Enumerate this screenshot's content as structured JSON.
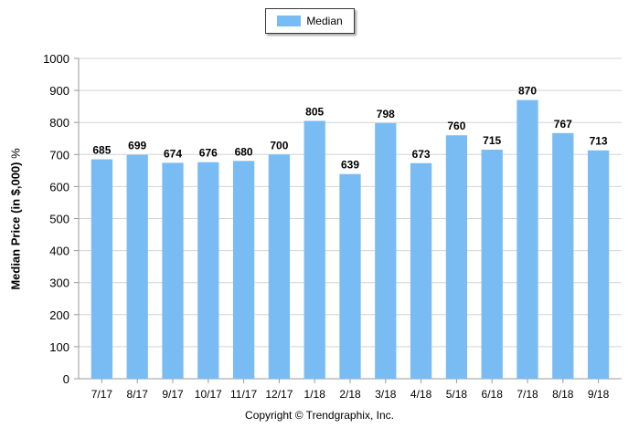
{
  "legend": {
    "label": "Median"
  },
  "copyright": "Copyright © Trendgraphix, Inc.",
  "chart_data": {
    "type": "bar",
    "title": "",
    "xlabel": "",
    "ylabel": "Median Price (in $,000)",
    "ylabel_unit": "%",
    "ylim": [
      0,
      1000
    ],
    "yticks": [
      0,
      100,
      200,
      300,
      400,
      500,
      600,
      700,
      800,
      900,
      1000
    ],
    "grid": true,
    "legend_position": "top-center",
    "colors": {
      "bar": "#79bcf3",
      "grid": "#d4d4d4",
      "axis": "#9a9a9a"
    },
    "categories": [
      "7/17",
      "8/17",
      "9/17",
      "10/17",
      "11/17",
      "12/17",
      "1/18",
      "2/18",
      "3/18",
      "4/18",
      "5/18",
      "6/18",
      "7/18",
      "8/18",
      "9/18"
    ],
    "series": [
      {
        "name": "Median",
        "values": [
          685,
          699,
          674,
          676,
          680,
          700,
          805,
          639,
          798,
          673,
          760,
          715,
          870,
          767,
          713
        ]
      }
    ]
  }
}
